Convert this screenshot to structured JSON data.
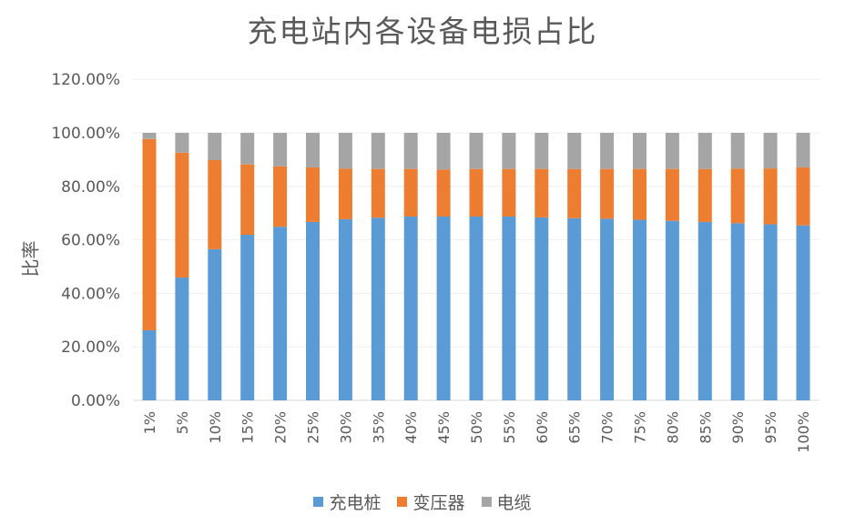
{
  "chart_data": {
    "type": "bar",
    "stacked": "percent",
    "title": "充电站内各设备电损占比",
    "xlabel": "",
    "ylabel": "比率",
    "ylim": [
      0,
      120
    ],
    "yticks": [
      "0.00%",
      "20.00%",
      "40.00%",
      "60.00%",
      "80.00%",
      "100.00%",
      "120.00%"
    ],
    "grid": true,
    "legend_position": "bottom",
    "categories": [
      "1%",
      "5%",
      "10%",
      "15%",
      "20%",
      "25%",
      "30%",
      "35%",
      "40%",
      "45%",
      "50%",
      "55%",
      "60%",
      "65%",
      "70%",
      "75%",
      "80%",
      "85%",
      "90%",
      "95%",
      "100%"
    ],
    "series": [
      {
        "name": "充电桩",
        "color": "#5B9BD5",
        "values": [
          26.2,
          45.9,
          56.5,
          61.9,
          64.9,
          66.7,
          67.7,
          68.3,
          68.7,
          68.7,
          68.7,
          68.7,
          68.4,
          68.1,
          67.9,
          67.5,
          67.1,
          66.7,
          66.2,
          65.8,
          65.4
        ]
      },
      {
        "name": "变压器",
        "color": "#ED7D31",
        "values": [
          71.5,
          46.7,
          33.3,
          26.3,
          22.6,
          20.4,
          18.9,
          18.2,
          17.8,
          17.6,
          17.8,
          17.8,
          18.1,
          18.4,
          18.6,
          19.0,
          19.4,
          19.8,
          20.4,
          20.9,
          21.7
        ]
      },
      {
        "name": "电缆",
        "color": "#A5A5A5",
        "values": [
          2.3,
          7.4,
          10.2,
          11.8,
          12.5,
          12.9,
          13.4,
          13.5,
          13.5,
          13.7,
          13.5,
          13.5,
          13.5,
          13.5,
          13.5,
          13.5,
          13.5,
          13.5,
          13.4,
          13.3,
          12.9
        ]
      }
    ]
  }
}
